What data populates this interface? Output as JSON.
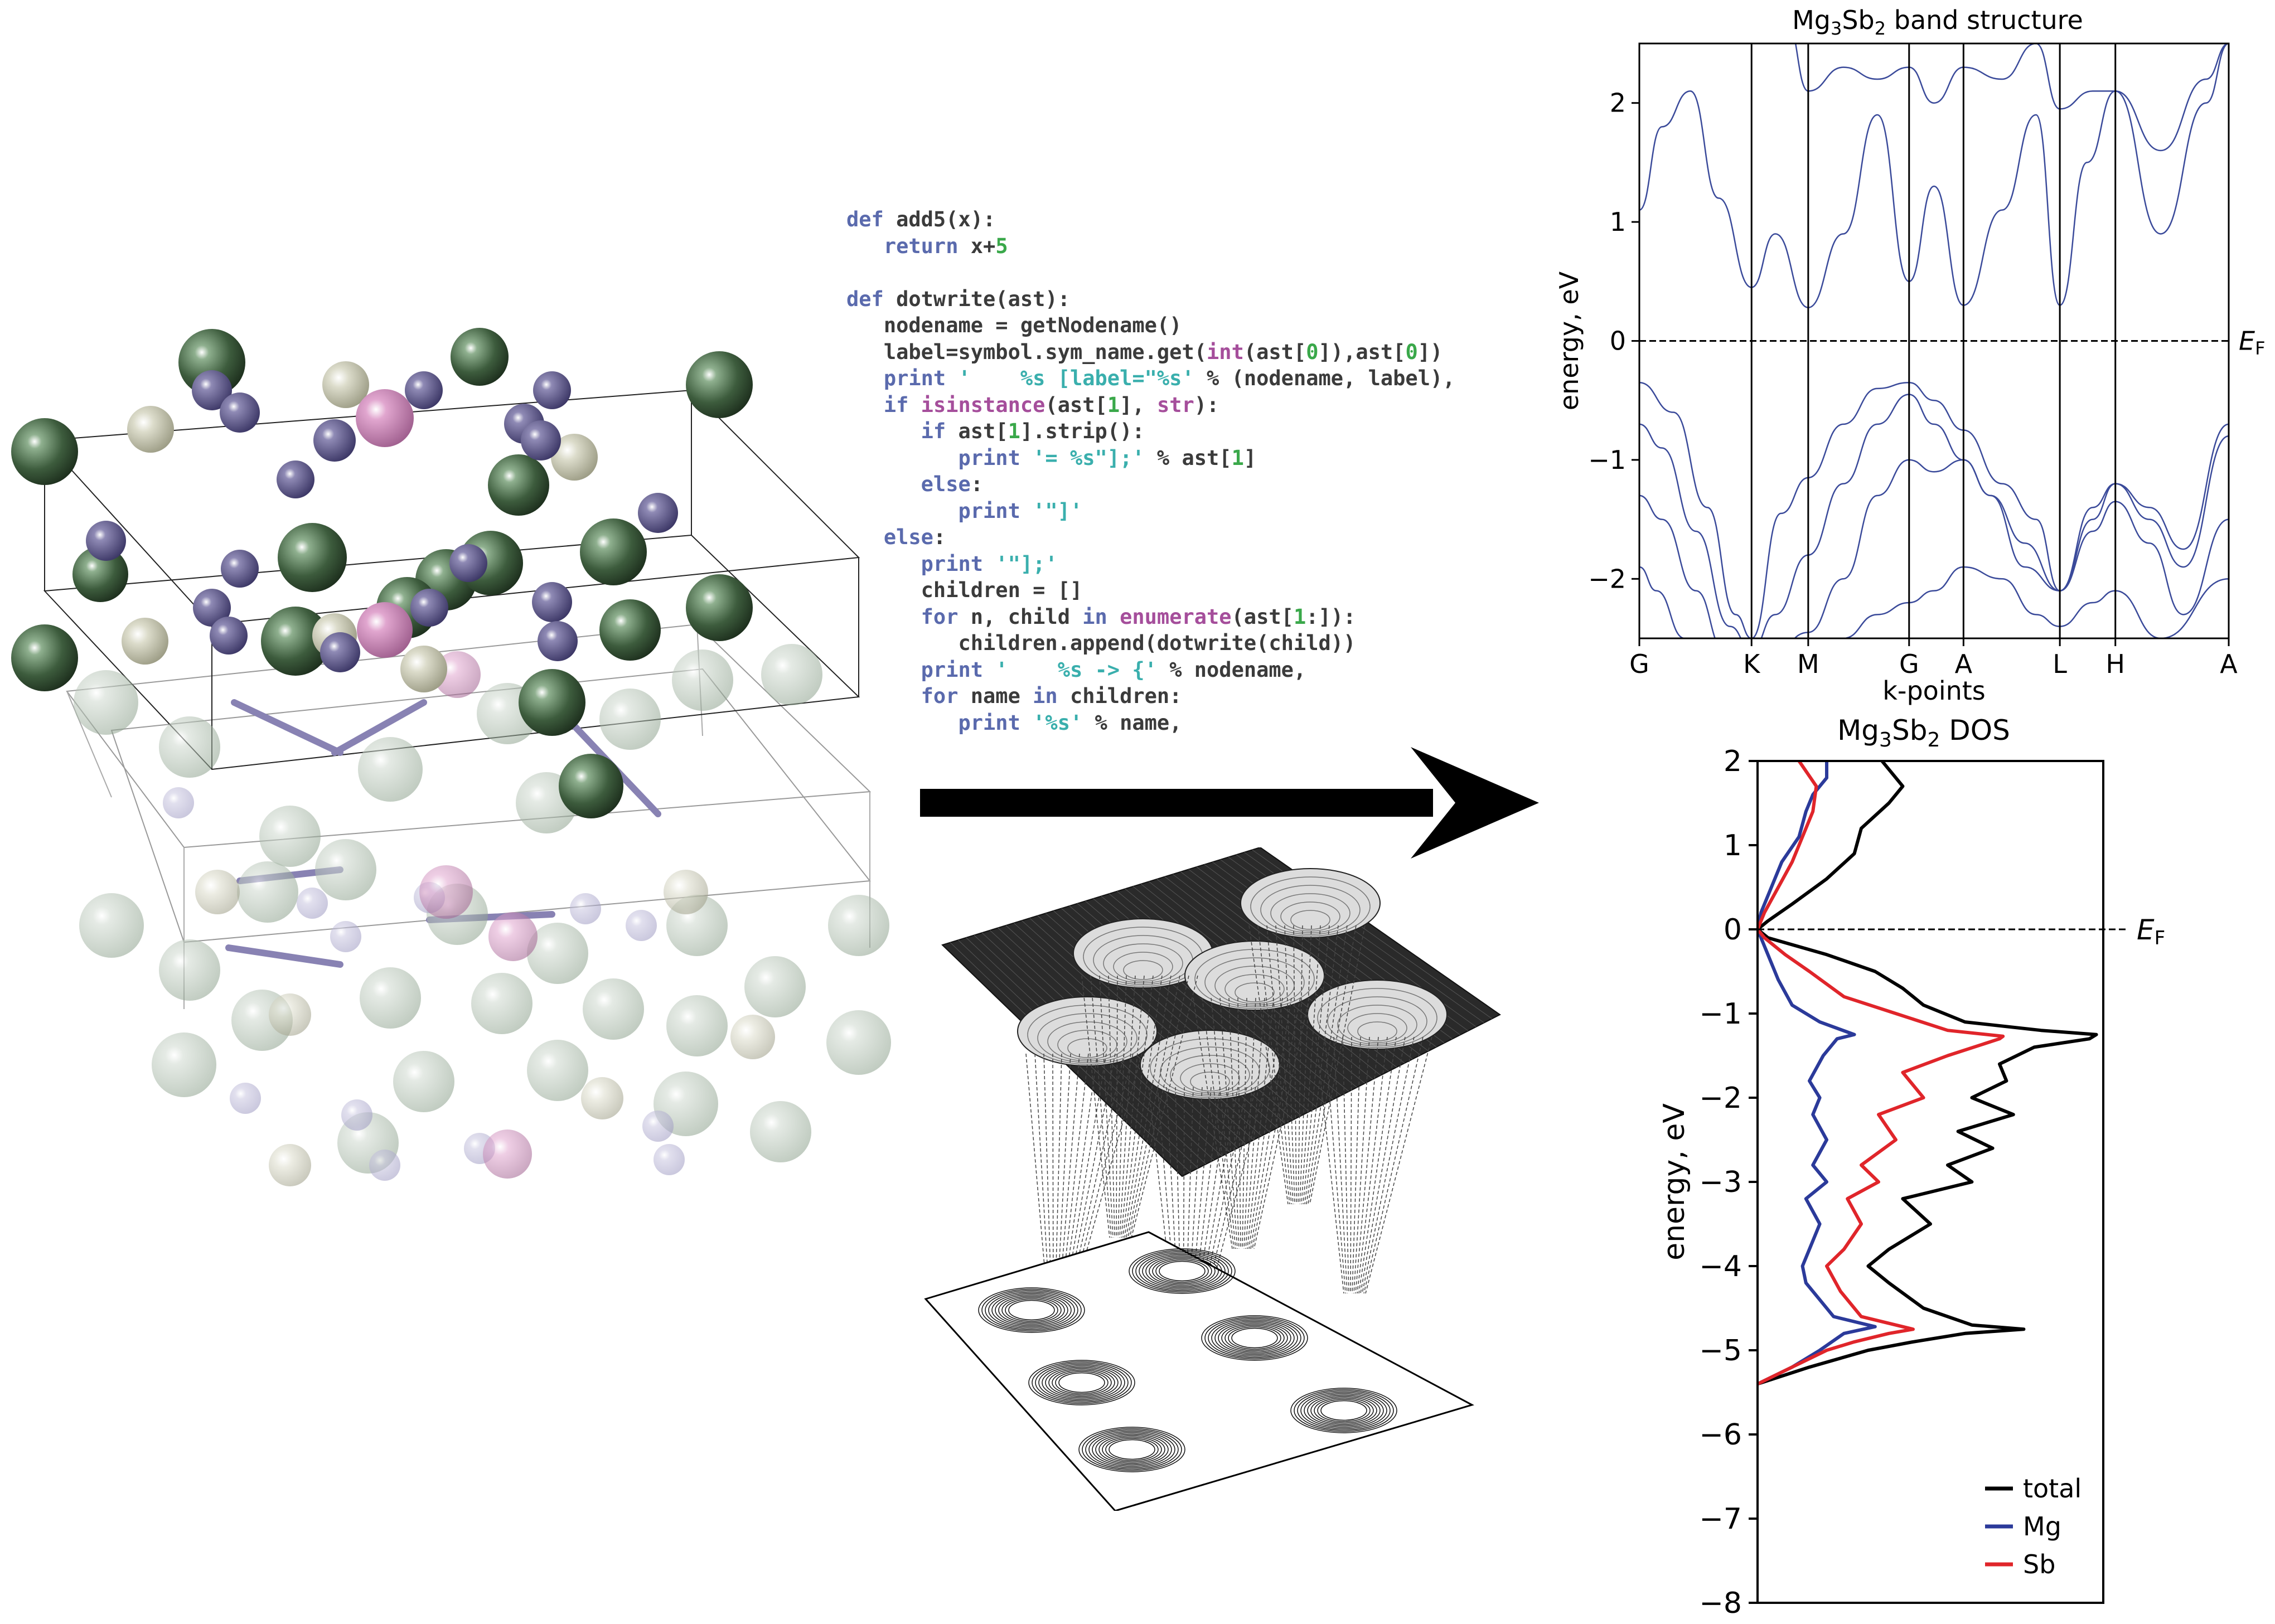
{
  "code": {
    "lines": [
      [
        {
          "t": "def",
          "c": "kw"
        },
        {
          "t": " add5(x):"
        }
      ],
      [
        {
          "t": "   "
        },
        {
          "t": "return",
          "c": "kw"
        },
        {
          "t": " x+"
        },
        {
          "t": "5",
          "c": "num"
        }
      ],
      [],
      [
        {
          "t": "def",
          "c": "kw"
        },
        {
          "t": " dotwrite(ast):"
        }
      ],
      [
        {
          "t": "   nodename = getNodename()"
        }
      ],
      [
        {
          "t": "   label=symbol.sym_name.get("
        },
        {
          "t": "int",
          "c": "bi"
        },
        {
          "t": "(ast["
        },
        {
          "t": "0",
          "c": "num"
        },
        {
          "t": "]),ast["
        },
        {
          "t": "0",
          "c": "num"
        },
        {
          "t": "])"
        }
      ],
      [
        {
          "t": "   "
        },
        {
          "t": "print",
          "c": "kw"
        },
        {
          "t": " '    %s [label=\"%s' ",
          "c": "str"
        },
        {
          "t": "% (nodename, label),"
        }
      ],
      [
        {
          "t": "   "
        },
        {
          "t": "if",
          "c": "kw"
        },
        {
          "t": " "
        },
        {
          "t": "isinstance",
          "c": "bi"
        },
        {
          "t": "(ast["
        },
        {
          "t": "1",
          "c": "num"
        },
        {
          "t": "], "
        },
        {
          "t": "str",
          "c": "bi"
        },
        {
          "t": "):"
        }
      ],
      [
        {
          "t": "      "
        },
        {
          "t": "if",
          "c": "kw"
        },
        {
          "t": " ast["
        },
        {
          "t": "1",
          "c": "num"
        },
        {
          "t": "].strip():"
        }
      ],
      [
        {
          "t": "         "
        },
        {
          "t": "print",
          "c": "kw"
        },
        {
          "t": " '= %s\"];'",
          "c": "str"
        },
        {
          "t": " % ast["
        },
        {
          "t": "1",
          "c": "num"
        },
        {
          "t": "]"
        }
      ],
      [
        {
          "t": "      "
        },
        {
          "t": "else",
          "c": "kw"
        },
        {
          "t": ":"
        }
      ],
      [
        {
          "t": "         "
        },
        {
          "t": "print",
          "c": "kw"
        },
        {
          "t": " '\"]'",
          "c": "str"
        }
      ],
      [
        {
          "t": "   "
        },
        {
          "t": "else",
          "c": "kw"
        },
        {
          "t": ":"
        }
      ],
      [
        {
          "t": "      "
        },
        {
          "t": "print",
          "c": "kw"
        },
        {
          "t": " '\"];'",
          "c": "str"
        }
      ],
      [
        {
          "t": "      children = []"
        }
      ],
      [
        {
          "t": "      "
        },
        {
          "t": "for",
          "c": "kw"
        },
        {
          "t": " n, child "
        },
        {
          "t": "in",
          "c": "kw"
        },
        {
          "t": " "
        },
        {
          "t": "enumerate",
          "c": "bi"
        },
        {
          "t": "(ast["
        },
        {
          "t": "1",
          "c": "num"
        },
        {
          "t": ":]):"
        }
      ],
      [
        {
          "t": "         children.append(dotwrite(child))"
        }
      ],
      [
        {
          "t": "      "
        },
        {
          "t": "print",
          "c": "kw"
        },
        {
          "t": " '    %s -> {'",
          "c": "str"
        },
        {
          "t": " % nodename,"
        }
      ],
      [
        {
          "t": "      "
        },
        {
          "t": "for",
          "c": "kw"
        },
        {
          "t": " name "
        },
        {
          "t": "in",
          "c": "kw"
        },
        {
          "t": " children:"
        }
      ],
      [
        {
          "t": "         "
        },
        {
          "t": "print",
          "c": "kw"
        },
        {
          "t": " '%s'",
          "c": "str"
        },
        {
          "t": " % name,"
        }
      ]
    ]
  },
  "chart_data": [
    {
      "type": "line",
      "title": "Mg3Sb2 band structure",
      "ylabel": "energy, eV",
      "xlabel": "k-points",
      "ylim": [
        -2.5,
        2.5
      ],
      "yticks": [
        -2,
        -1,
        0,
        1,
        2
      ],
      "ytick_labels": [
        "−2",
        "−1",
        "0",
        "1",
        "2"
      ],
      "kpoints": [
        "G",
        "K",
        "M",
        "G",
        "A",
        "L",
        "H",
        "A"
      ],
      "kpoint_positions": [
        0,
        0.99,
        1.49,
        2.38,
        2.86,
        3.71,
        4.2,
        5.2
      ],
      "fermi_label": "EF",
      "fermi_level": 0,
      "band_color": "#3a4a9a",
      "series": [
        {
          "x": [
            0,
            0.2,
            0.45,
            0.7,
            0.99,
            1.2,
            1.49,
            1.8,
            2.1,
            2.38,
            2.6,
            2.86,
            3.2,
            3.5,
            3.71,
            3.95,
            4.2,
            4.6,
            5.0,
            5.2
          ],
          "values": [
            1.1,
            1.8,
            2.1,
            1.2,
            0.45,
            0.9,
            0.28,
            0.9,
            1.9,
            0.5,
            1.3,
            0.3,
            1.1,
            1.9,
            0.3,
            1.5,
            2.1,
            0.9,
            2.0,
            2.5
          ]
        },
        {
          "x": [
            0,
            0.3,
            0.6,
            0.99,
            1.3,
            1.49,
            1.8,
            2.1,
            2.38,
            2.6,
            2.86,
            3.2,
            3.5,
            3.71,
            4.0,
            4.2,
            4.6,
            5.0,
            5.2
          ],
          "values": [
            2.5,
            2.6,
            2.5,
            2.8,
            2.7,
            2.1,
            2.3,
            2.2,
            2.3,
            2.0,
            2.3,
            2.2,
            2.5,
            1.95,
            2.1,
            2.1,
            1.6,
            2.2,
            2.5
          ]
        },
        {
          "x": [
            0,
            0.3,
            0.6,
            0.85,
            0.99,
            1.25,
            1.49,
            1.8,
            2.1,
            2.38,
            2.6,
            2.86,
            3.2,
            3.5,
            3.71,
            4.0,
            4.2,
            4.5,
            4.8,
            5.2
          ],
          "values": [
            -0.35,
            -0.6,
            -1.4,
            -2.3,
            -2.5,
            -1.45,
            -1.15,
            -0.7,
            -0.4,
            -0.35,
            -0.5,
            -0.75,
            -1.2,
            -1.5,
            -2.1,
            -1.4,
            -1.2,
            -1.4,
            -1.75,
            -0.7
          ]
        },
        {
          "x": [
            0,
            0.2,
            0.5,
            0.8,
            0.99,
            1.2,
            1.49,
            1.8,
            2.1,
            2.38,
            2.6,
            2.86,
            3.1,
            3.4,
            3.71,
            4.0,
            4.2,
            4.5,
            4.8,
            5.2
          ],
          "values": [
            -0.7,
            -0.9,
            -1.6,
            -2.4,
            -2.6,
            -2.3,
            -1.8,
            -1.2,
            -0.7,
            -0.45,
            -0.7,
            -1.0,
            -1.3,
            -1.7,
            -2.1,
            -1.5,
            -1.2,
            -1.5,
            -1.9,
            -0.8
          ]
        },
        {
          "x": [
            0,
            0.2,
            0.5,
            0.75,
            0.99,
            1.2,
            1.49,
            1.8,
            2.1,
            2.38,
            2.6,
            2.86,
            3.1,
            3.4,
            3.71,
            4.0,
            4.2,
            4.5,
            4.8,
            5.2
          ],
          "values": [
            -1.3,
            -1.5,
            -2.1,
            -2.6,
            -2.7,
            -2.6,
            -2.45,
            -2.0,
            -1.3,
            -1.0,
            -1.1,
            -1.0,
            -1.3,
            -1.9,
            -2.1,
            -1.6,
            -1.35,
            -1.7,
            -2.3,
            -1.5
          ]
        },
        {
          "x": [
            0,
            0.15,
            0.4,
            0.6,
            0.8,
            1.0,
            1.2,
            1.49,
            1.8,
            2.1,
            2.38,
            2.6,
            2.86,
            3.2,
            3.5,
            3.71,
            4.0,
            4.2,
            4.6,
            5.2
          ],
          "values": [
            -1.9,
            -2.1,
            -2.5,
            -2.7,
            -2.8,
            -2.8,
            -2.7,
            -2.6,
            -2.5,
            -2.3,
            -2.2,
            -2.1,
            -1.9,
            -2.0,
            -2.3,
            -2.4,
            -2.2,
            -2.1,
            -2.5,
            -2.0
          ]
        }
      ]
    },
    {
      "type": "line",
      "title": "Mg3Sb2 DOS",
      "ylabel": "energy, eV",
      "ylim": [
        -8,
        2
      ],
      "xlim": [
        0,
        1
      ],
      "yticks": [
        -8,
        -7,
        -6,
        -5,
        -4,
        -3,
        -2,
        -1,
        0,
        1,
        2
      ],
      "ytick_labels": [
        "−8",
        "−7",
        "−6",
        "−5",
        "−4",
        "−3",
        "−2",
        "−1",
        "0",
        "1",
        "2"
      ],
      "fermi_label": "EF",
      "fermi_level": 0,
      "legend": "lower-right",
      "series": [
        {
          "name": "total",
          "color": "#000000",
          "energy": [
            -5.4,
            -5.2,
            -5.0,
            -4.9,
            -4.8,
            -4.75,
            -4.7,
            -4.5,
            -4.2,
            -4.0,
            -3.8,
            -3.5,
            -3.2,
            -3.0,
            -2.8,
            -2.6,
            -2.4,
            -2.2,
            -2.0,
            -1.8,
            -1.6,
            -1.4,
            -1.3,
            -1.25,
            -1.2,
            -1.1,
            -0.9,
            -0.7,
            -0.5,
            -0.3,
            -0.1,
            0.0,
            0.1,
            0.3,
            0.6,
            0.9,
            1.2,
            1.5,
            1.7,
            1.9,
            2.0
          ],
          "dos": [
            0.0,
            0.15,
            0.32,
            0.45,
            0.6,
            0.77,
            0.62,
            0.48,
            0.38,
            0.32,
            0.38,
            0.5,
            0.42,
            0.62,
            0.55,
            0.68,
            0.58,
            0.74,
            0.62,
            0.72,
            0.7,
            0.8,
            0.96,
            0.98,
            0.82,
            0.6,
            0.48,
            0.42,
            0.34,
            0.2,
            0.03,
            0.0,
            0.03,
            0.1,
            0.2,
            0.28,
            0.3,
            0.38,
            0.42,
            0.38,
            0.36
          ]
        },
        {
          "name": "Mg",
          "color": "#2b3a9a",
          "energy": [
            -5.4,
            -5.2,
            -5.0,
            -4.8,
            -4.72,
            -4.6,
            -4.4,
            -4.2,
            -4.0,
            -3.8,
            -3.5,
            -3.2,
            -3.0,
            -2.8,
            -2.5,
            -2.2,
            -2.0,
            -1.8,
            -1.5,
            -1.3,
            -1.25,
            -1.1,
            -0.9,
            -0.6,
            -0.3,
            -0.1,
            0.0,
            0.2,
            0.5,
            0.8,
            1.1,
            1.4,
            1.6,
            1.8,
            2.0
          ],
          "dos": [
            0.0,
            0.1,
            0.18,
            0.25,
            0.34,
            0.22,
            0.18,
            0.14,
            0.13,
            0.15,
            0.18,
            0.14,
            0.2,
            0.16,
            0.2,
            0.16,
            0.18,
            0.15,
            0.19,
            0.23,
            0.28,
            0.18,
            0.1,
            0.06,
            0.03,
            0.01,
            0.0,
            0.01,
            0.04,
            0.07,
            0.12,
            0.14,
            0.16,
            0.2,
            0.2
          ]
        },
        {
          "name": "Sb",
          "color": "#e0252a",
          "energy": [
            -5.4,
            -5.2,
            -5.0,
            -4.9,
            -4.8,
            -4.75,
            -4.6,
            -4.3,
            -4.0,
            -3.8,
            -3.5,
            -3.2,
            -3.0,
            -2.8,
            -2.5,
            -2.2,
            -2.0,
            -1.7,
            -1.5,
            -1.3,
            -1.27,
            -1.2,
            -1.0,
            -0.8,
            -0.5,
            -0.3,
            -0.1,
            0.0,
            0.2,
            0.5,
            0.8,
            1.1,
            1.4,
            1.7,
            2.0
          ],
          "dos": [
            0.0,
            0.1,
            0.2,
            0.28,
            0.38,
            0.45,
            0.3,
            0.24,
            0.2,
            0.25,
            0.3,
            0.26,
            0.35,
            0.3,
            0.4,
            0.35,
            0.48,
            0.42,
            0.55,
            0.7,
            0.71,
            0.55,
            0.4,
            0.25,
            0.15,
            0.08,
            0.02,
            0.0,
            0.02,
            0.06,
            0.1,
            0.13,
            0.16,
            0.17,
            0.12
          ]
        }
      ]
    }
  ]
}
